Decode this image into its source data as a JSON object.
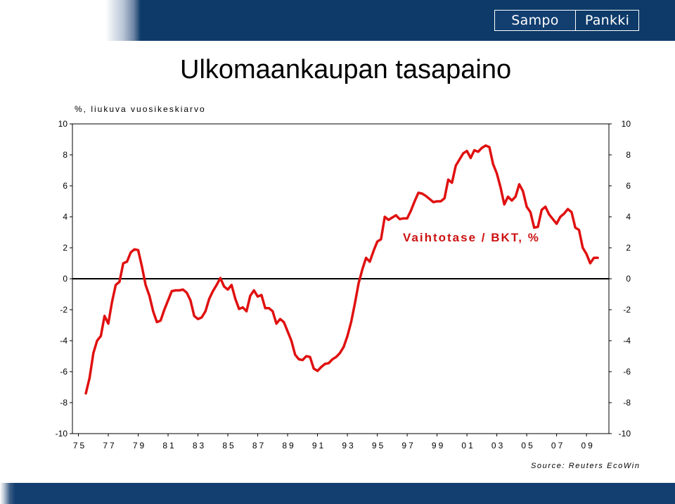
{
  "header": {
    "logo_left": "Sampo",
    "logo_right": "Pankki"
  },
  "title": "Ulkomaankaupan tasapaino",
  "subtitle": "%, liukuva vuosikeskiarvo",
  "source": "Source: Reuters EcoWin",
  "colors": {
    "series_line": "#e01010",
    "series_label": "#cc1111",
    "brand_navy": "#0d3a68",
    "zero_line": "#000000"
  },
  "chart_data": {
    "type": "line",
    "title": "Ulkomaankaupan tasapaino",
    "subtitle": "%, liukuva vuosikeskiarvo",
    "xlabel": "",
    "ylabel": "",
    "ylim": [
      -10,
      10
    ],
    "xlim": [
      1974.6,
      2010.5
    ],
    "yticks": [
      10,
      8,
      6,
      4,
      2,
      0,
      -2,
      -4,
      -6,
      -8,
      -10
    ],
    "ytick_labels": [
      "10",
      "8",
      "6",
      "4",
      "2",
      "0",
      "-2",
      "-4",
      "-6",
      "-8",
      "-10"
    ],
    "xtick_labels": [
      "75",
      "77",
      "79",
      "81",
      "83",
      "85",
      "87",
      "89",
      "91",
      "93",
      "95",
      "97",
      "99",
      "01",
      "03",
      "05",
      "07",
      "09"
    ],
    "xtick_years": [
      1975,
      1977,
      1979,
      1981,
      1983,
      1985,
      1987,
      1989,
      1991,
      1993,
      1995,
      1997,
      1999,
      2001,
      2003,
      2005,
      2007,
      2009
    ],
    "grid": false,
    "right_axis": true,
    "series": [
      {
        "name": "Vaihtotase / BKT, %",
        "x": [
          1975.5,
          1975.75,
          1976.0,
          1976.25,
          1976.5,
          1976.75,
          1977.0,
          1977.25,
          1977.5,
          1977.75,
          1978.0,
          1978.25,
          1978.5,
          1978.75,
          1979.0,
          1979.25,
          1979.5,
          1979.75,
          1980.0,
          1980.25,
          1980.5,
          1980.75,
          1981.0,
          1981.25,
          1981.5,
          1981.75,
          1982.0,
          1982.25,
          1982.5,
          1982.75,
          1983.0,
          1983.25,
          1983.5,
          1983.75,
          1984.0,
          1984.25,
          1984.5,
          1984.75,
          1985.0,
          1985.25,
          1985.5,
          1985.75,
          1986.0,
          1986.25,
          1986.5,
          1986.75,
          1987.0,
          1987.25,
          1987.5,
          1987.75,
          1988.0,
          1988.25,
          1988.5,
          1988.75,
          1989.0,
          1989.25,
          1989.5,
          1989.75,
          1990.0,
          1990.25,
          1990.5,
          1990.75,
          1991.0,
          1991.25,
          1991.5,
          1991.75,
          1992.0,
          1992.25,
          1992.5,
          1992.75,
          1993.0,
          1993.25,
          1993.5,
          1993.75,
          1994.0,
          1994.25,
          1994.5,
          1994.75,
          1995.0,
          1995.25,
          1995.5,
          1995.75,
          1996.0,
          1996.25,
          1996.5,
          1996.75,
          1997.0,
          1997.25,
          1997.5,
          1997.75,
          1998.0,
          1998.25,
          1998.5,
          1998.75,
          1999.0,
          1999.25,
          1999.5,
          1999.75,
          2000.0,
          2000.25,
          2000.5,
          2000.75,
          2001.0,
          2001.25,
          2001.5,
          2001.75,
          2002.0,
          2002.25,
          2002.5,
          2002.75,
          2003.0,
          2003.25,
          2003.5,
          2003.75,
          2004.0,
          2004.25,
          2004.5,
          2004.75,
          2005.0,
          2005.25,
          2005.5,
          2005.75,
          2006.0,
          2006.25,
          2006.5,
          2006.75,
          2007.0,
          2007.25,
          2007.5,
          2007.75,
          2008.0,
          2008.25,
          2008.5,
          2008.75,
          2009.0,
          2009.25,
          2009.5,
          2009.75
        ],
        "values": [
          -7.4,
          -6.4,
          -4.8,
          -4.0,
          -3.7,
          -2.4,
          -2.9,
          -1.5,
          -0.4,
          -0.2,
          1.0,
          1.1,
          1.7,
          1.9,
          1.85,
          0.8,
          -0.4,
          -1.1,
          -2.1,
          -2.8,
          -2.7,
          -2.0,
          -1.4,
          -0.8,
          -0.75,
          -0.75,
          -0.7,
          -0.9,
          -1.4,
          -2.4,
          -2.6,
          -2.5,
          -2.1,
          -1.3,
          -0.8,
          -0.4,
          0.05,
          -0.5,
          -0.7,
          -0.4,
          -1.3,
          -1.95,
          -1.85,
          -2.1,
          -1.1,
          -0.75,
          -1.15,
          -1.05,
          -1.9,
          -1.9,
          -2.1,
          -2.9,
          -2.6,
          -2.8,
          -3.4,
          -4.0,
          -4.9,
          -5.2,
          -5.25,
          -5.0,
          -5.05,
          -5.8,
          -5.95,
          -5.7,
          -5.5,
          -5.45,
          -5.2,
          -5.05,
          -4.8,
          -4.4,
          -3.7,
          -2.8,
          -1.6,
          -0.3,
          0.6,
          1.35,
          1.1,
          1.8,
          2.4,
          2.55,
          4.0,
          3.8,
          3.95,
          4.1,
          3.85,
          3.9,
          3.9,
          4.4,
          5.0,
          5.55,
          5.5,
          5.35,
          5.15,
          4.95,
          5.0,
          5.0,
          5.2,
          6.4,
          6.2,
          7.3,
          7.7,
          8.1,
          8.25,
          7.8,
          8.3,
          8.2,
          8.45,
          8.6,
          8.5,
          7.4,
          6.8,
          5.9,
          4.8,
          5.3,
          5.05,
          5.3,
          6.1,
          5.65,
          4.65,
          4.3,
          3.3,
          3.35,
          4.45,
          4.65,
          4.15,
          3.85,
          3.55,
          4.0,
          4.2,
          4.5,
          4.3,
          3.3,
          3.15,
          2.0,
          1.6,
          1.0,
          1.35,
          1.35
        ]
      }
    ],
    "series_label_text": "Vaihtotase / BKT, %"
  }
}
